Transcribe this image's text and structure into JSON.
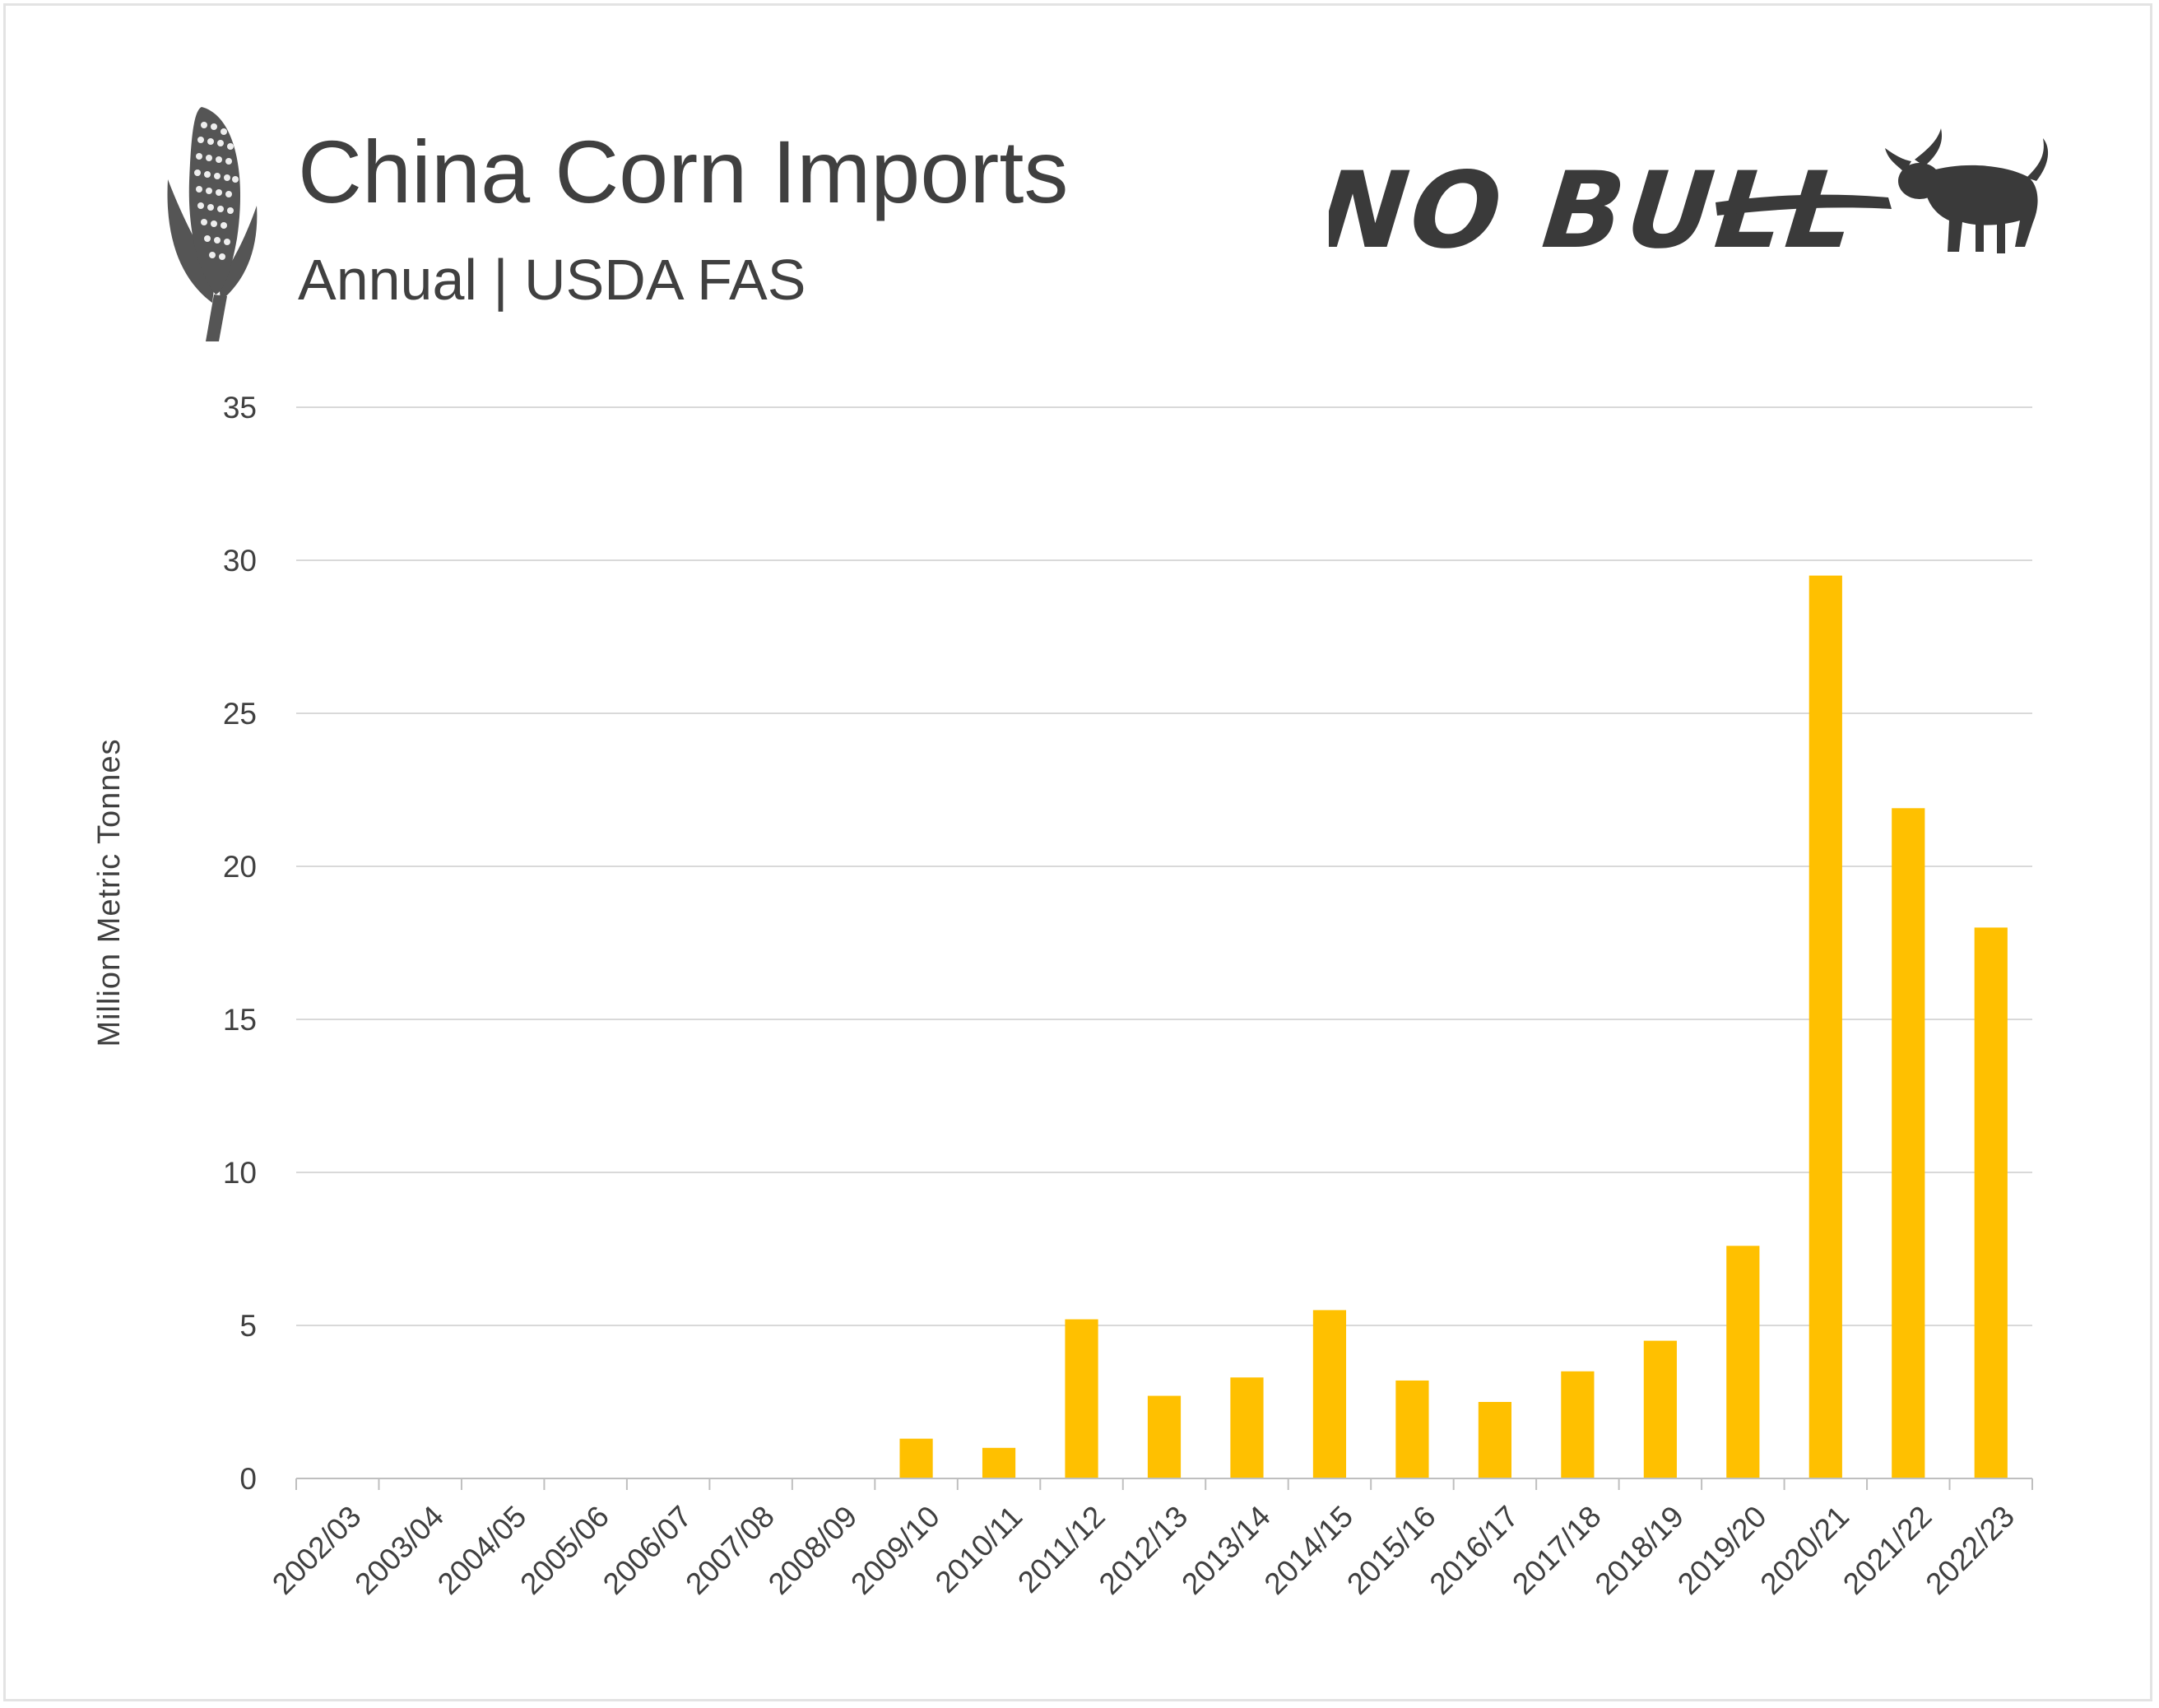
{
  "header": {
    "title": "China Corn Imports",
    "subtitle": "Annual | USDA FAS",
    "corn_icon": "corn-cob-icon",
    "brand_icon": "no-bull-logo"
  },
  "brand": {
    "text": "NO BULL"
  },
  "colors": {
    "bar": "#FFC000",
    "text": "#404040",
    "grid": "#d9d9d9"
  },
  "chart_data": {
    "type": "bar",
    "title": "China Corn Imports",
    "subtitle": "Annual | USDA FAS",
    "xlabel": "",
    "ylabel": "Million Metric Tonnes",
    "ylim": [
      0,
      35
    ],
    "yticks": [
      0,
      5,
      10,
      15,
      20,
      25,
      30,
      35
    ],
    "grid": true,
    "categories": [
      "2002/03",
      "2003/04",
      "2004/05",
      "2005/06",
      "2006/07",
      "2007/08",
      "2008/09",
      "2009/10",
      "2010/11",
      "2011/12",
      "2012/13",
      "2013/14",
      "2014/15",
      "2015/16",
      "2016/17",
      "2017/18",
      "2018/19",
      "2019/20",
      "2020/21",
      "2021/22",
      "2022/23"
    ],
    "values": [
      0,
      0,
      0,
      0,
      0,
      0,
      0,
      1.3,
      1.0,
      5.2,
      2.7,
      3.3,
      5.5,
      3.2,
      2.5,
      3.5,
      4.5,
      7.6,
      29.5,
      21.9,
      18.0
    ]
  }
}
